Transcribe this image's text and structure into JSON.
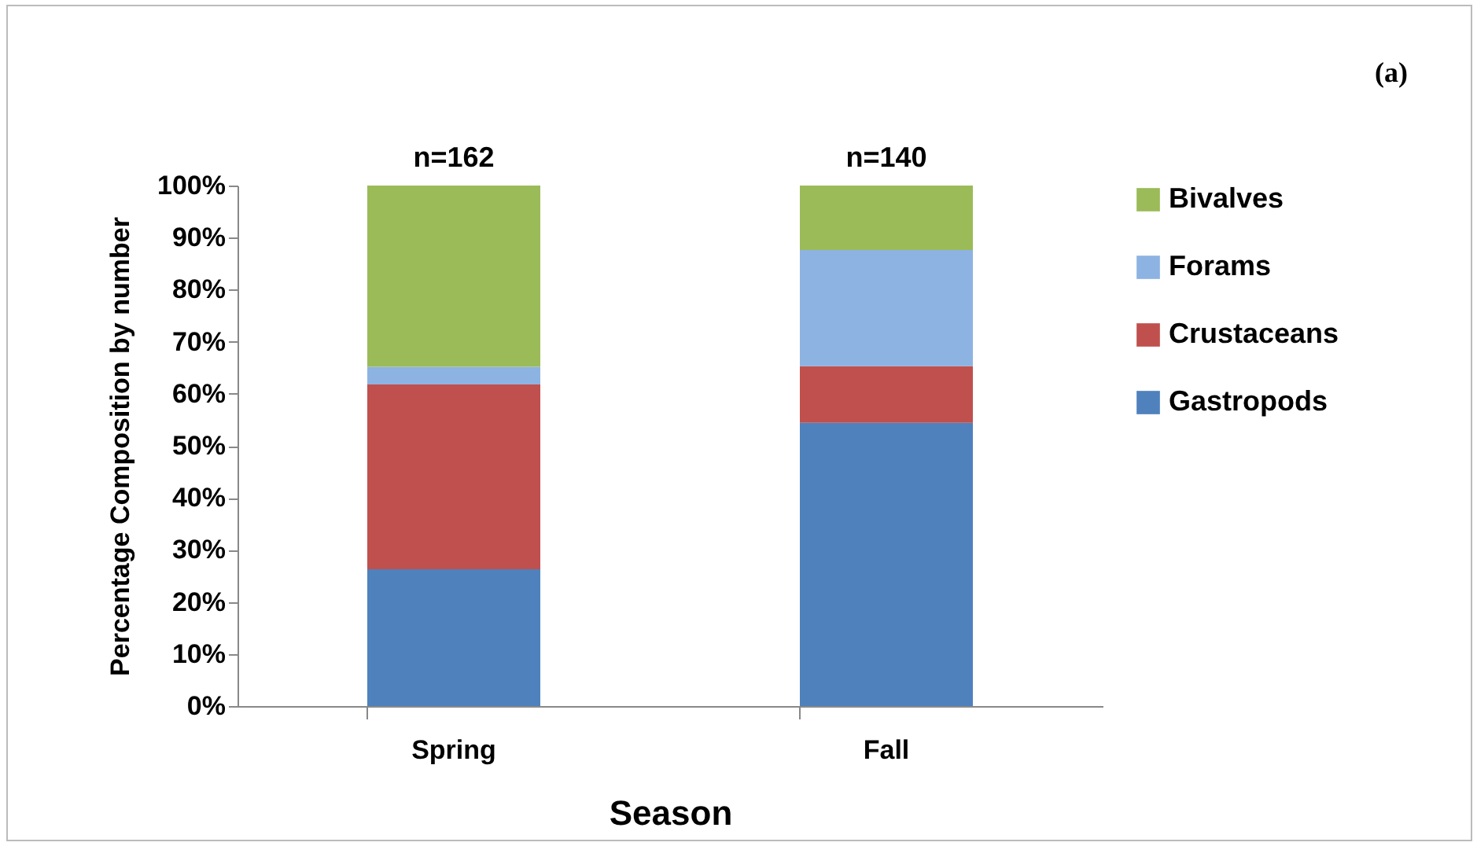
{
  "chart_data": {
    "type": "bar",
    "stacked": true,
    "xlabel": "Season",
    "ylabel": "Percentage Composition by number",
    "categories": [
      "Spring",
      "Fall"
    ],
    "series": [
      {
        "name": "Gastropods",
        "color": "#4f81bd",
        "values": [
          26.3,
          54.4
        ]
      },
      {
        "name": "Crustaceans",
        "color": "#c0504d",
        "values": [
          35.5,
          10.9
        ]
      },
      {
        "name": "Forams",
        "color": "#8db3e2",
        "values": [
          3.4,
          22.3
        ]
      },
      {
        "name": "Bivalves",
        "color": "#9bbb59",
        "values": [
          34.8,
          12.4
        ]
      }
    ],
    "annotations": [
      "(a)",
      {
        "text": "n=162",
        "x": "Spring",
        "y": 100
      },
      {
        "text": "n=140",
        "x": "Fall",
        "y": 100
      }
    ],
    "ylim": [
      0,
      100
    ],
    "yticks": [
      {
        "value": 0,
        "label": "0%"
      },
      {
        "value": 10,
        "label": "10%"
      },
      {
        "value": 20,
        "label": "20%"
      },
      {
        "value": 30,
        "label": "30%"
      },
      {
        "value": 40,
        "label": "40%"
      },
      {
        "value": 50,
        "label": "50%"
      },
      {
        "value": 60,
        "label": "60%"
      },
      {
        "value": 70,
        "label": "70%"
      },
      {
        "value": 80,
        "label": "80%"
      },
      {
        "value": 90,
        "label": "90%"
      },
      {
        "value": 100,
        "label": "100%"
      }
    ],
    "grid": false,
    "legend": "right"
  }
}
